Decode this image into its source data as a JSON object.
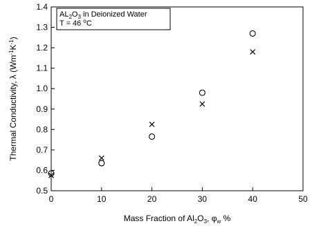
{
  "chart_data": {
    "type": "scatter",
    "title": "",
    "annotation": {
      "line1": {
        "base": "AL",
        "sub1": "2",
        "mid": "O",
        "sub2": "3",
        "rest": " in Deionized Water"
      },
      "line2": {
        "prefix": "T = 46 ",
        "sup": "o",
        "suffix": "C"
      }
    },
    "xlabel": {
      "prefix": "Mass Fraction of Al",
      "sub1": "2",
      "mid": "O",
      "sub2": "3",
      "sep": ", ",
      "phi": "φ",
      "phisub": "w",
      "suffix": " %"
    },
    "ylabel": {
      "prefix": "Thermal Conductivity, λ (Wm",
      "sup1": "-1",
      "mid": "K",
      "sup2": "-1",
      "suffix": ")"
    },
    "xlim": [
      0,
      50
    ],
    "ylim": [
      0.5,
      1.4
    ],
    "x_ticks": [
      "0",
      "10",
      "20",
      "30",
      "40",
      "50"
    ],
    "y_ticks": [
      "0.5",
      "0.6",
      "0.7",
      "0.8",
      "0.9",
      "1.0",
      "1.1",
      "1.2",
      "1.3",
      "1.4"
    ],
    "grid": false,
    "series": [
      {
        "marker": "circle",
        "x": [
          0,
          10,
          20,
          30,
          40
        ],
        "y": [
          0.585,
          0.635,
          0.765,
          0.98,
          1.27
        ]
      },
      {
        "marker": "cross",
        "x": [
          0,
          10,
          20,
          30,
          40
        ],
        "y": [
          0.575,
          0.66,
          0.825,
          0.925,
          1.18
        ]
      }
    ]
  }
}
